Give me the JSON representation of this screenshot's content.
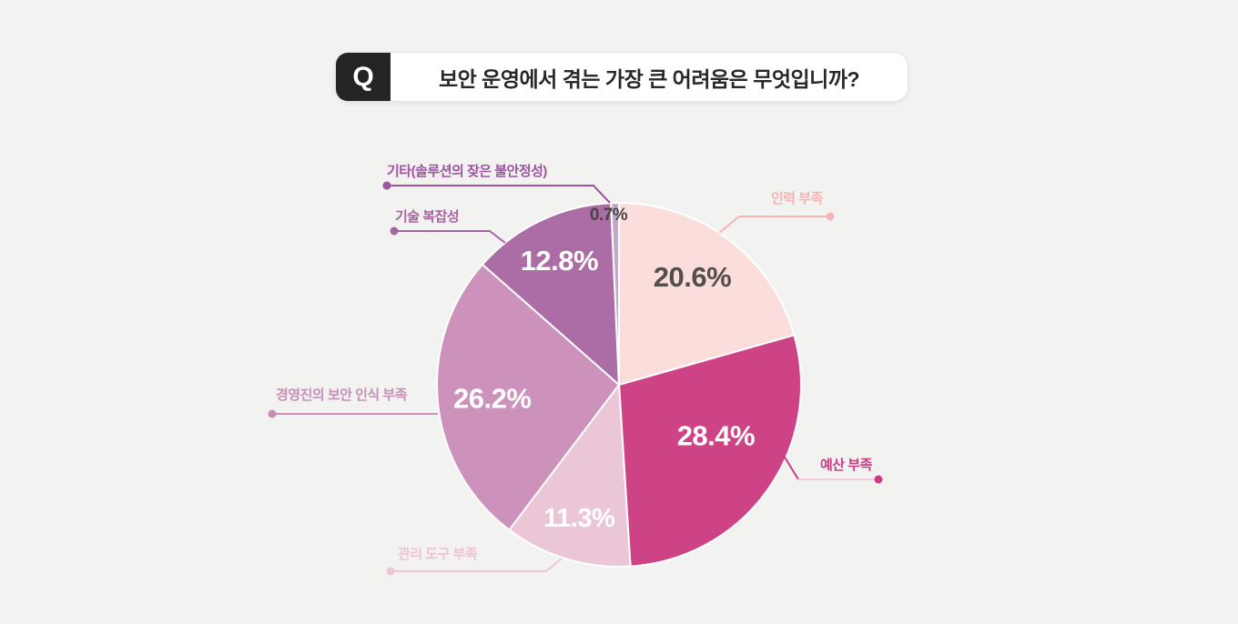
{
  "question": {
    "badge": "Q",
    "text": "보안 운영에서 겪는 가장 큰 어려움은 무엇입니까?"
  },
  "colors": {
    "background": "#F2F2F0",
    "question_badge_bg": "#242424",
    "question_box_bg": "#FFFFFF",
    "question_text": "#282828",
    "slice_divider": "#FFFFFF"
  },
  "chart_data": {
    "type": "pie",
    "title": "보안 운영에서 겪는 가장 큰 어려움은 무엇입니까?",
    "unit": "%",
    "total": 100,
    "start_angle_deg": 0,
    "direction": "clockwise",
    "legend_position": "callout-labels-around-pie",
    "slices": [
      {
        "label": "인력 부족",
        "value": 20.6,
        "display": "20.6%",
        "color": "#FBDEDC",
        "label_color": "#F6B5B2",
        "value_text_color": "#544E4B"
      },
      {
        "label": "예산 부족",
        "value": 28.4,
        "display": "28.4%",
        "color": "#CE4386",
        "label_color": "#C73E84",
        "value_text_color": "#FFFFFF"
      },
      {
        "label": "관리 도구 부족",
        "value": 11.3,
        "display": "11.3%",
        "color": "#EBC6D7",
        "label_color": "#EFC3D5",
        "value_text_color": "#FFFFFF"
      },
      {
        "label": "경영진의 보안 인식 부족",
        "value": 26.2,
        "display": "26.2%",
        "color": "#CC92BB",
        "label_color": "#C78FB8",
        "value_text_color": "#FFFFFF"
      },
      {
        "label": "기술 복잡성",
        "value": 12.8,
        "display": "12.8%",
        "color": "#AC6DA7",
        "label_color": "#A565A1",
        "value_text_color": "#FFFFFF"
      },
      {
        "label": "기타(솔루션의 잦은 불안정성)",
        "value": 0.7,
        "display": "0.7%",
        "color": "#C2AAC6",
        "label_color": "#9D55A0",
        "value_text_color": "#474345"
      }
    ]
  }
}
